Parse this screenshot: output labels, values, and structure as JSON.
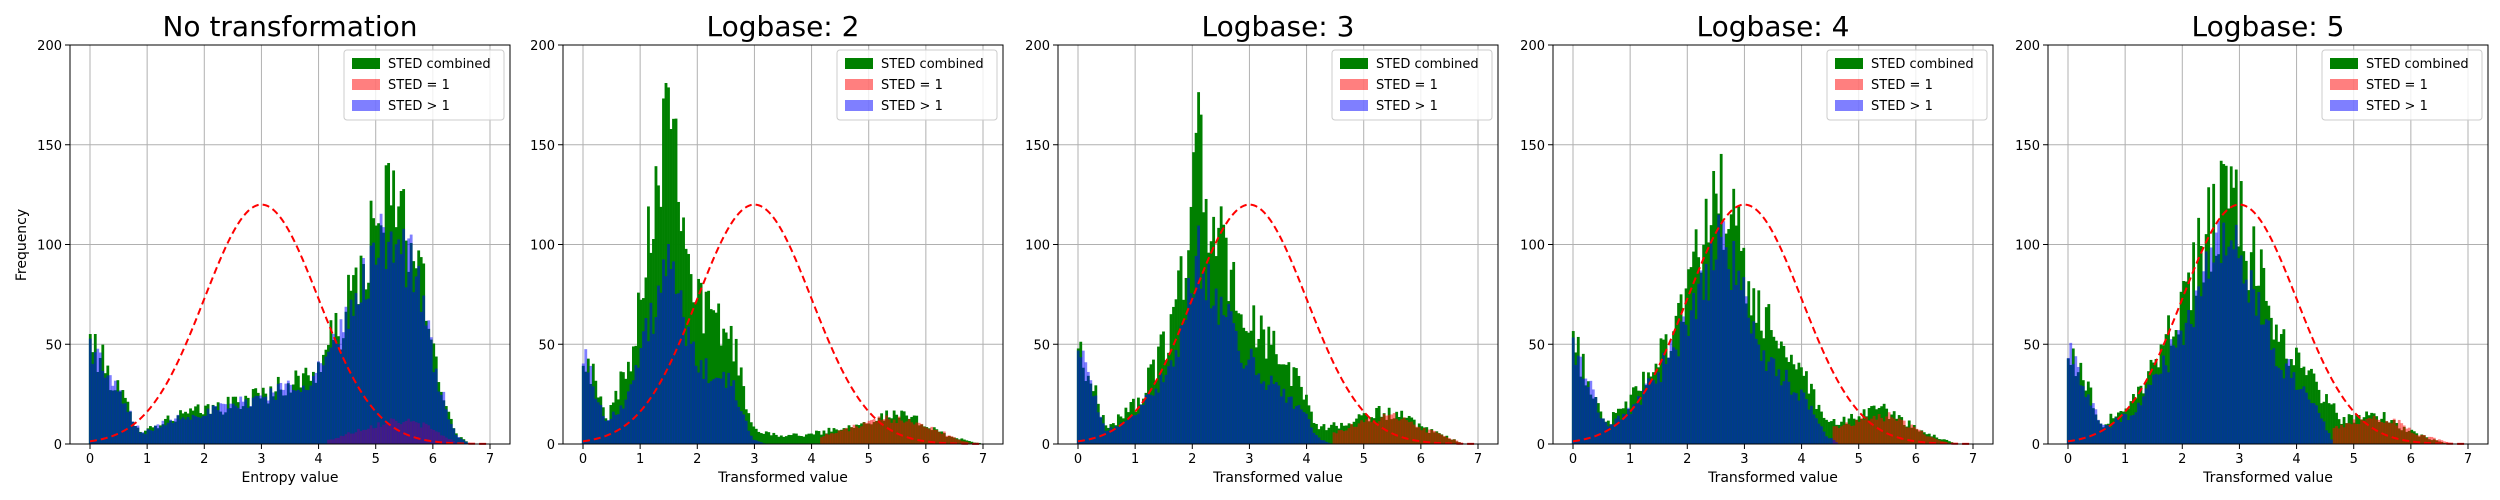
{
  "figure": {
    "ylabel": "Frequency"
  },
  "legend_labels": [
    "STED combined",
    "STED = 1",
    "STED > 1"
  ],
  "colors": {
    "combined": "#008000",
    "sted_eq_1": "#ff0000",
    "sted_gt_1": "#0000ff",
    "combined_alpha_overlap_blue": "#003f80",
    "red_over_green": "#804000",
    "curve": "#ff0000",
    "grid": "#b0b0b0"
  },
  "chart_data": [
    {
      "type": "histogram",
      "title": "No transformation",
      "xlabel": "Entropy value",
      "ylabel": "Frequency",
      "xlim": [
        -0.35,
        7.35
      ],
      "ylim": [
        0,
        200
      ],
      "xticks": [
        0,
        1,
        2,
        3,
        4,
        5,
        6,
        7
      ],
      "yticks": [
        0,
        50,
        100,
        150,
        200
      ],
      "grid": true,
      "legend": "top-right",
      "series": [
        {
          "name": "STED combined",
          "peaks": [
            [
              0.0,
              52
            ],
            [
              0.9,
              6
            ],
            [
              1.5,
              14
            ],
            [
              2.5,
              20
            ],
            [
              3.3,
              28
            ],
            [
              3.9,
              35
            ],
            [
              4.4,
              60
            ],
            [
              4.9,
              100
            ],
            [
              5.3,
              125
            ],
            [
              5.7,
              95
            ],
            [
              6.1,
              35
            ],
            [
              6.4,
              5
            ]
          ]
        },
        {
          "name": "STED = 1",
          "peaks": [
            [
              4.2,
              2
            ],
            [
              4.8,
              8
            ],
            [
              5.3,
              12
            ],
            [
              5.8,
              10
            ],
            [
              6.2,
              4
            ]
          ]
        },
        {
          "name": "STED > 1",
          "peaks": [
            [
              0.0,
              50
            ],
            [
              0.9,
              5
            ],
            [
              1.5,
              13
            ],
            [
              2.5,
              19
            ],
            [
              3.3,
              27
            ],
            [
              3.9,
              33
            ],
            [
              4.4,
              55
            ],
            [
              4.9,
              90
            ],
            [
              5.3,
              108
            ],
            [
              5.7,
              85
            ],
            [
              6.1,
              30
            ],
            [
              6.4,
              4
            ]
          ]
        }
      ],
      "curve": {
        "mean": 3.0,
        "std": 1.0,
        "peak": 120
      }
    },
    {
      "type": "histogram",
      "title": "Logbase: 2",
      "xlabel": "Transformed value",
      "ylabel": "",
      "xlim": [
        -0.35,
        7.35
      ],
      "ylim": [
        0,
        200
      ],
      "xticks": [
        0,
        1,
        2,
        3,
        4,
        5,
        6,
        7
      ],
      "yticks": [
        0,
        50,
        100,
        150,
        200
      ],
      "grid": true,
      "legend": "top-right",
      "series": [
        {
          "name": "STED combined",
          "peaks": [
            [
              0.0,
              50
            ],
            [
              0.4,
              12
            ],
            [
              0.8,
              40
            ],
            [
              1.1,
              95
            ],
            [
              1.35,
              150
            ],
            [
              1.5,
              185
            ],
            [
              1.7,
              140
            ],
            [
              1.9,
              80
            ],
            [
              2.2,
              65
            ],
            [
              2.6,
              55
            ],
            [
              2.95,
              8
            ],
            [
              3.5,
              4
            ],
            [
              4.0,
              5
            ],
            [
              4.5,
              8
            ],
            [
              5.0,
              12
            ],
            [
              5.5,
              15
            ],
            [
              6.0,
              10
            ],
            [
              6.4,
              4
            ],
            [
              6.8,
              1
            ]
          ]
        },
        {
          "name": "STED = 1",
          "peaks": [
            [
              4.2,
              4
            ],
            [
              4.7,
              8
            ],
            [
              5.2,
              12
            ],
            [
              5.7,
              13
            ],
            [
              6.2,
              7
            ],
            [
              6.6,
              2
            ]
          ]
        },
        {
          "name": "STED > 1",
          "peaks": [
            [
              0.0,
              48
            ],
            [
              0.4,
              10
            ],
            [
              0.8,
              25
            ],
            [
              1.1,
              55
            ],
            [
              1.35,
              75
            ],
            [
              1.5,
              90
            ],
            [
              1.7,
              70
            ],
            [
              1.9,
              45
            ],
            [
              2.2,
              35
            ],
            [
              2.6,
              30
            ],
            [
              2.95,
              3
            ]
          ]
        }
      ],
      "curve": {
        "mean": 3.0,
        "std": 1.0,
        "peak": 120
      }
    },
    {
      "type": "histogram",
      "title": "Logbase: 3",
      "xlabel": "Transformed value",
      "ylabel": "",
      "xlim": [
        -0.35,
        7.35
      ],
      "ylim": [
        0,
        200
      ],
      "xticks": [
        0,
        1,
        2,
        3,
        4,
        5,
        6,
        7
      ],
      "yticks": [
        0,
        50,
        100,
        150,
        200
      ],
      "grid": true,
      "legend": "top-right",
      "series": [
        {
          "name": "STED combined",
          "peaks": [
            [
              0.0,
              50
            ],
            [
              0.5,
              8
            ],
            [
              1.0,
              20
            ],
            [
              1.4,
              40
            ],
            [
              1.8,
              80
            ],
            [
              2.1,
              150
            ],
            [
              2.3,
              115
            ],
            [
              2.6,
              90
            ],
            [
              2.9,
              65
            ],
            [
              3.2,
              55
            ],
            [
              3.6,
              40
            ],
            [
              3.9,
              30
            ],
            [
              4.2,
              8
            ],
            [
              4.7,
              10
            ],
            [
              5.2,
              16
            ],
            [
              5.6,
              15
            ],
            [
              6.0,
              8
            ],
            [
              6.5,
              3
            ]
          ]
        },
        {
          "name": "STED = 1",
          "peaks": [
            [
              4.5,
              6
            ],
            [
              5.0,
              11
            ],
            [
              5.5,
              14
            ],
            [
              6.0,
              8
            ],
            [
              6.5,
              3
            ]
          ]
        },
        {
          "name": "STED > 1",
          "peaks": [
            [
              0.0,
              48
            ],
            [
              0.5,
              6
            ],
            [
              1.0,
              15
            ],
            [
              1.4,
              28
            ],
            [
              1.8,
              55
            ],
            [
              2.1,
              95
            ],
            [
              2.3,
              80
            ],
            [
              2.6,
              62
            ],
            [
              2.9,
              45
            ],
            [
              3.2,
              35
            ],
            [
              3.6,
              25
            ],
            [
              3.9,
              18
            ],
            [
              4.2,
              3
            ]
          ]
        }
      ],
      "curve": {
        "mean": 3.0,
        "std": 1.0,
        "peak": 120
      }
    },
    {
      "type": "histogram",
      "title": "Logbase: 4",
      "xlabel": "Transformed value",
      "ylabel": "",
      "xlim": [
        -0.35,
        7.35
      ],
      "ylim": [
        0,
        200
      ],
      "xticks": [
        0,
        1,
        2,
        3,
        4,
        5,
        6,
        7
      ],
      "yticks": [
        0,
        50,
        100,
        150,
        200
      ],
      "grid": true,
      "legend": "top-right",
      "series": [
        {
          "name": "STED combined",
          "peaks": [
            [
              0.0,
              50
            ],
            [
              0.6,
              10
            ],
            [
              1.1,
              25
            ],
            [
              1.5,
              45
            ],
            [
              1.9,
              70
            ],
            [
              2.3,
              100
            ],
            [
              2.5,
              125
            ],
            [
              2.8,
              110
            ],
            [
              3.1,
              75
            ],
            [
              3.4,
              60
            ],
            [
              3.8,
              45
            ],
            [
              4.1,
              30
            ],
            [
              4.4,
              10
            ],
            [
              4.8,
              12
            ],
            [
              5.3,
              18
            ],
            [
              5.7,
              14
            ],
            [
              6.1,
              6
            ],
            [
              6.5,
              2
            ]
          ]
        },
        {
          "name": "STED = 1",
          "peaks": [
            [
              4.6,
              8
            ],
            [
              5.1,
              13
            ],
            [
              5.6,
              14
            ],
            [
              6.0,
              7
            ],
            [
              6.4,
              2
            ]
          ]
        },
        {
          "name": "STED > 1",
          "peaks": [
            [
              0.0,
              48
            ],
            [
              0.6,
              8
            ],
            [
              1.1,
              20
            ],
            [
              1.5,
              35
            ],
            [
              1.9,
              55
            ],
            [
              2.3,
              80
            ],
            [
              2.5,
              100
            ],
            [
              2.8,
              90
            ],
            [
              3.1,
              60
            ],
            [
              3.4,
              42
            ],
            [
              3.8,
              30
            ],
            [
              4.1,
              20
            ],
            [
              4.4,
              5
            ]
          ]
        }
      ],
      "curve": {
        "mean": 3.0,
        "std": 1.0,
        "peak": 120
      }
    },
    {
      "type": "histogram",
      "title": "Logbase: 5",
      "xlabel": "Transformed value",
      "ylabel": "",
      "xlim": [
        -0.35,
        7.35
      ],
      "ylim": [
        0,
        200
      ],
      "xticks": [
        0,
        1,
        2,
        3,
        4,
        5,
        6,
        7
      ],
      "yticks": [
        0,
        50,
        100,
        150,
        200
      ],
      "grid": true,
      "legend": "top-right",
      "series": [
        {
          "name": "STED combined",
          "peaks": [
            [
              0.0,
              50
            ],
            [
              0.6,
              10
            ],
            [
              1.1,
              20
            ],
            [
              1.5,
              40
            ],
            [
              1.9,
              65
            ],
            [
              2.3,
              95
            ],
            [
              2.6,
              115
            ],
            [
              2.9,
              120
            ],
            [
              3.2,
              95
            ],
            [
              3.5,
              70
            ],
            [
              3.8,
              50
            ],
            [
              4.1,
              40
            ],
            [
              4.4,
              25
            ],
            [
              4.8,
              12
            ],
            [
              5.2,
              15
            ],
            [
              5.6,
              13
            ],
            [
              6.0,
              6
            ],
            [
              6.4,
              2
            ]
          ]
        },
        {
          "name": "STED = 1",
          "peaks": [
            [
              4.7,
              9
            ],
            [
              5.2,
              13
            ],
            [
              5.7,
              12
            ],
            [
              6.1,
              5
            ],
            [
              6.5,
              2
            ]
          ]
        },
        {
          "name": "STED > 1",
          "peaks": [
            [
              0.0,
              48
            ],
            [
              0.6,
              8
            ],
            [
              1.1,
              15
            ],
            [
              1.5,
              30
            ],
            [
              1.9,
              50
            ],
            [
              2.3,
              75
            ],
            [
              2.6,
              95
            ],
            [
              2.9,
              100
            ],
            [
              3.2,
              80
            ],
            [
              3.5,
              55
            ],
            [
              3.8,
              38
            ],
            [
              4.1,
              30
            ],
            [
              4.4,
              15
            ]
          ]
        }
      ],
      "curve": {
        "mean": 3.0,
        "std": 1.0,
        "peak": 120
      }
    }
  ]
}
